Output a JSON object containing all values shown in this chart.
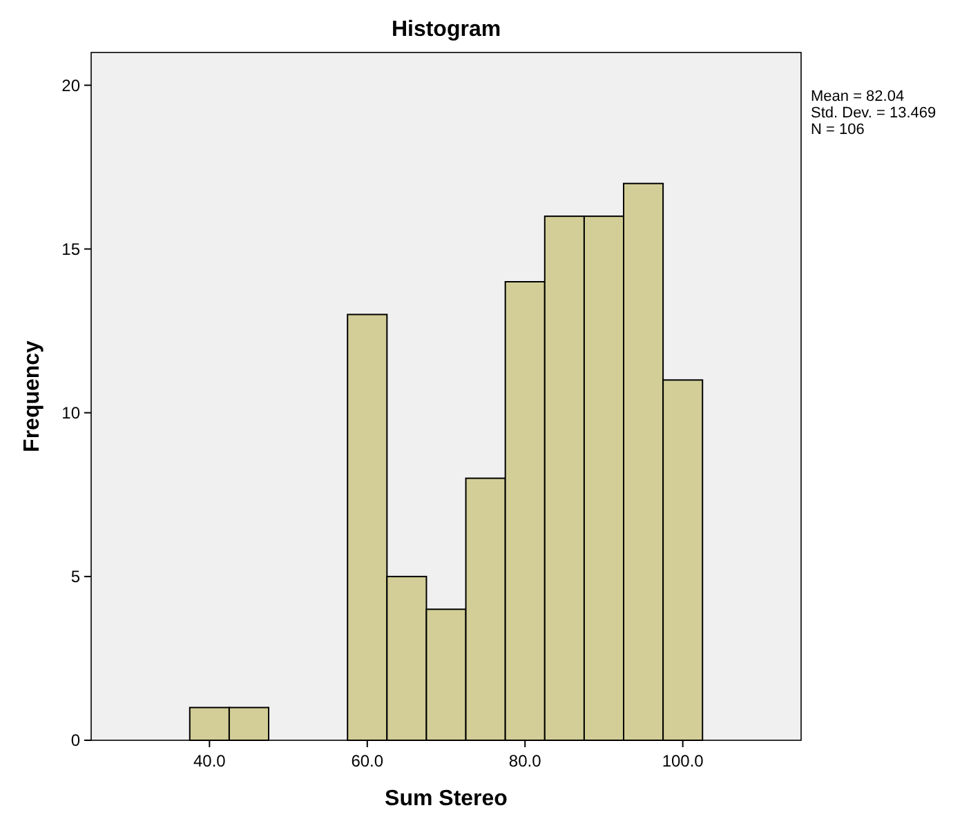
{
  "chart_data": {
    "type": "histogram",
    "title": "Histogram",
    "xlabel": "Sum Stereo",
    "ylabel": "Frequency",
    "bins": [
      37.5,
      42.5,
      47.5,
      52.5,
      57.5,
      62.5,
      67.5,
      72.5,
      77.5,
      82.5,
      87.5,
      92.5,
      97.5,
      102.5
    ],
    "values": [
      1,
      1,
      0,
      0,
      13,
      5,
      4,
      8,
      14,
      16,
      16,
      17,
      11
    ],
    "color": "#d3ce97",
    "xlim": [
      25,
      115
    ],
    "xticks": [
      {
        "value": 40,
        "label": "40.0"
      },
      {
        "value": 60,
        "label": "60.0"
      },
      {
        "value": 80,
        "label": "80.0"
      },
      {
        "value": 100,
        "label": "100.0"
      }
    ],
    "ylim": [
      0,
      21
    ],
    "yticks": [
      0,
      5,
      10,
      15,
      20
    ],
    "grid": false,
    "annotations": [
      "Mean = 82.04",
      "Std. Dev. = 13.469",
      "N = 106"
    ]
  }
}
